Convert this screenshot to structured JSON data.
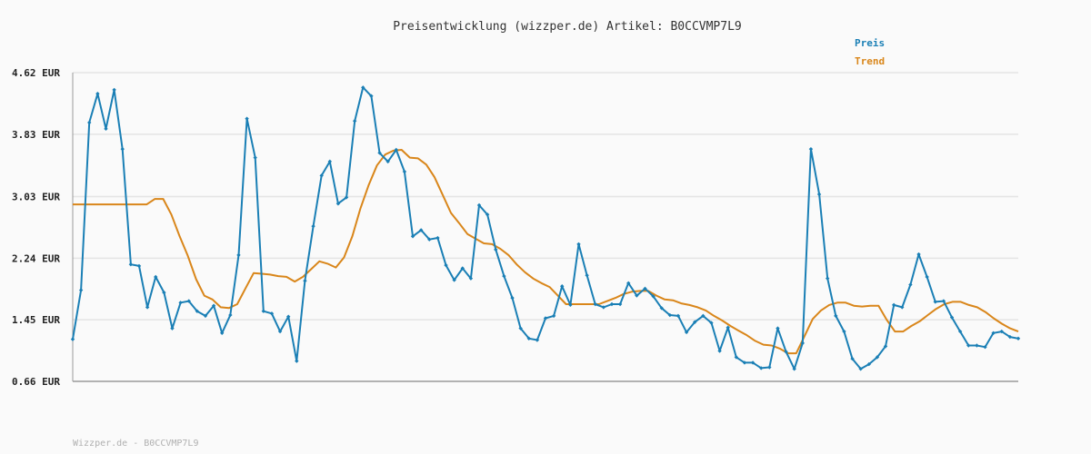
{
  "title": "Preisentwicklung (wizzper.de) Artikel: B0CCVMP7L9",
  "footer": "Wizzper.de - B0CCVMP7L9",
  "colors": {
    "preis": "#1a7fb5",
    "trend": "#d9861a",
    "grid": "#e4e4e4",
    "axis": "#999999"
  },
  "chart_data": {
    "type": "line",
    "title": "Preisentwicklung (wizzper.de) Artikel: B0CCVMP7L9",
    "ylim": [
      0.66,
      4.62
    ],
    "yticks": [
      "0.66 EUR",
      "1.45 EUR",
      "2.24 EUR",
      "3.03 EUR",
      "3.83 EUR",
      "4.62 EUR"
    ],
    "ytick_values": [
      0.66,
      1.45,
      2.24,
      3.03,
      3.83,
      4.62
    ],
    "grid": true,
    "legend_position": "top-right",
    "series": [
      {
        "name": "Preis",
        "color": "#1a7fb5",
        "markers": true,
        "values": [
          1.2,
          1.83,
          3.98,
          4.35,
          3.9,
          4.4,
          3.64,
          2.16,
          2.14,
          1.61,
          2.0,
          1.8,
          1.34,
          1.67,
          1.69,
          1.56,
          1.5,
          1.63,
          1.28,
          1.51,
          2.28,
          4.03,
          3.53,
          1.56,
          1.53,
          1.3,
          1.49,
          0.92,
          1.95,
          2.65,
          3.3,
          3.48,
          2.94,
          3.02,
          4.0,
          4.43,
          4.32,
          3.59,
          3.48,
          3.63,
          3.35,
          2.52,
          2.6,
          2.48,
          2.5,
          2.15,
          1.96,
          2.11,
          1.98,
          2.92,
          2.8,
          2.35,
          2.01,
          1.73,
          1.34,
          1.21,
          1.19,
          1.47,
          1.5,
          1.88,
          1.64,
          2.42,
          2.02,
          1.65,
          1.61,
          1.65,
          1.65,
          1.92,
          1.76,
          1.85,
          1.75,
          1.6,
          1.51,
          1.5,
          1.29,
          1.42,
          1.5,
          1.41,
          1.05,
          1.35,
          0.97,
          0.9,
          0.9,
          0.83,
          0.84,
          1.34,
          1.04,
          0.82,
          1.15,
          3.64,
          3.06,
          1.98,
          1.5,
          1.3,
          0.95,
          0.82,
          0.88,
          0.97,
          1.11,
          1.64,
          1.61,
          1.9,
          2.29,
          2.0,
          1.68,
          1.69,
          1.48,
          1.3,
          1.12,
          1.12,
          1.1,
          1.28,
          1.3,
          1.23,
          1.21
        ]
      },
      {
        "name": "Trend",
        "color": "#d9861a",
        "markers": false,
        "values": [
          2.93,
          2.93,
          2.93,
          2.93,
          2.93,
          2.93,
          2.93,
          2.93,
          2.93,
          2.93,
          3.0,
          3.0,
          2.8,
          2.52,
          2.27,
          1.97,
          1.76,
          1.71,
          1.61,
          1.6,
          1.65,
          1.85,
          2.05,
          2.04,
          2.03,
          2.01,
          2.0,
          1.94,
          2.0,
          2.1,
          2.2,
          2.17,
          2.12,
          2.25,
          2.52,
          2.88,
          3.18,
          3.43,
          3.57,
          3.62,
          3.63,
          3.53,
          3.52,
          3.44,
          3.28,
          3.05,
          2.82,
          2.69,
          2.55,
          2.49,
          2.43,
          2.42,
          2.36,
          2.28,
          2.16,
          2.06,
          1.98,
          1.92,
          1.87,
          1.76,
          1.65,
          1.65,
          1.65,
          1.65,
          1.65,
          1.69,
          1.73,
          1.78,
          1.81,
          1.82,
          1.82,
          1.76,
          1.71,
          1.7,
          1.66,
          1.64,
          1.61,
          1.57,
          1.5,
          1.44,
          1.37,
          1.31,
          1.25,
          1.18,
          1.13,
          1.12,
          1.08,
          1.02,
          1.02,
          1.24,
          1.46,
          1.57,
          1.64,
          1.67,
          1.67,
          1.63,
          1.62,
          1.63,
          1.63,
          1.45,
          1.3,
          1.3,
          1.37,
          1.43,
          1.51,
          1.59,
          1.65,
          1.68,
          1.68,
          1.64,
          1.61,
          1.55,
          1.47,
          1.4,
          1.34,
          1.3
        ]
      }
    ]
  }
}
